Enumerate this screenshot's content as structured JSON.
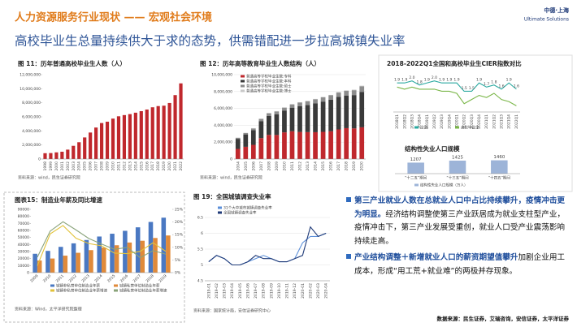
{
  "header": {
    "title": "人力资源服务行业现状 —— 宏观社会环境",
    "subtitle": "高校毕业生总量持续供大于求的态势，供需错配进一步拉高城镇失业率",
    "logo": "中德·上海",
    "logo_en": "Ultimate Solutions"
  },
  "bullets": [
    {
      "lead": "第三产业就业人数在总就业人口中占比持续攀升，疫情冲击更为明显。",
      "text": "经济结构调整使第三产业跃居成为就业支柱型产业，疫情冲击下，第三产业发展受重创，就业人口受产业震荡影响持续走高。"
    },
    {
      "lead": "产业结构调整＋新增就业人口的薪资期望值攀升",
      "text": "加剧企业用工成本，形成“用工荒+就业难”的两极并存现象。"
    }
  ],
  "footer": "数据来源：民生证券，艾瑞咨询，安信证券，太平洋证券",
  "chart_data": [
    {
      "type": "bar",
      "title": "图 11：历年普通高校毕业生人数（人）",
      "source": "资料来源：wind，民生证券研究院",
      "categories": [
        "1998",
        "1999",
        "2000",
        "2001",
        "2002",
        "2003",
        "2004",
        "2005",
        "2006",
        "2007",
        "2008",
        "2009",
        "2010",
        "2011",
        "2012",
        "2013",
        "2014",
        "2015",
        "2016",
        "2017",
        "2018",
        "2019",
        "2020",
        "2021",
        "2022"
      ],
      "values": [
        830000,
        850000,
        950000,
        1040000,
        1340000,
        1880000,
        2390000,
        3070000,
        3770000,
        4480000,
        5120000,
        5310000,
        5750000,
        6080000,
        6250000,
        6390000,
        6590000,
        6810000,
        7040000,
        7360000,
        7530000,
        7590000,
        7970000,
        9090000,
        10760000
      ],
      "color": "#c0282d",
      "ylim": [
        0,
        12000000
      ],
      "yticks": [
        0,
        {
          "value": 2000000,
          "label": "2,000,000"
        },
        {
          "value": 4000000,
          "label": "4,000,000"
        },
        {
          "value": 6000000,
          "label": "6,000,000"
        },
        {
          "value": 8000000,
          "label": "8,000,000"
        },
        {
          "value": 10000000,
          "label": "10,000,000"
        },
        {
          "value": 12000000,
          "label": "12,000,000"
        }
      ],
      "grid": false
    },
    {
      "type": "stacked_bar",
      "title": "图 12：历年高等教育毕业生人数结构（人）",
      "source": "资料来源：wind，民生证券研究院",
      "categories": [
        "2004",
        "2005",
        "2006",
        "2007",
        "2008",
        "2009",
        "2010",
        "2011",
        "2012",
        "2013",
        "2014",
        "2015",
        "2016",
        "2017",
        "2018",
        "2019",
        "2020"
      ],
      "series": [
        {
          "name": "普通高等学校毕业生数:专科",
          "color": "#c0282d",
          "values": [
            1200000,
            1450000,
            1680000,
            2480000,
            2860000,
            2850000,
            3160000,
            3290000,
            3210000,
            3190000,
            3180000,
            3220000,
            3290000,
            3510000,
            3660000,
            3630000,
            3760000
          ]
        },
        {
          "name": "普通高等学校毕业生数:本科",
          "color": "#3a3a3a",
          "values": [
            1190000,
            1470000,
            1730000,
            1990000,
            2260000,
            2460000,
            2590000,
            2800000,
            3040000,
            3200000,
            3410000,
            3590000,
            3750000,
            3850000,
            3870000,
            3950000,
            4200000
          ]
        },
        {
          "name": "普通高等学校毕业生数:硕士",
          "color": "#8c8c8c",
          "values": [
            127000,
            162000,
            216000,
            280000,
            300000,
            322000,
            334000,
            380000,
            434000,
            460000,
            482000,
            497000,
            508000,
            520000,
            544000,
            577000,
            663000
          ]
        },
        {
          "name": "普通高等学校毕业生数:博士",
          "color": "#c8c8c8",
          "values": [
            23000,
            27000,
            36000,
            41000,
            44000,
            49000,
            49000,
            50000,
            52000,
            53000,
            54000,
            54000,
            55000,
            58000,
            61000,
            63000,
            66000
          ]
        }
      ],
      "ylim": [
        0,
        10000000
      ],
      "yticks": [
        0,
        {
          "value": 2000000,
          "label": "2,000,000"
        },
        {
          "value": 4000000,
          "label": "4,000,000"
        },
        {
          "value": 6000000,
          "label": "6,000,000"
        },
        {
          "value": 8000000,
          "label": "8,000,000"
        },
        {
          "value": 10000000,
          "label": "10,000,000"
        }
      ],
      "grid": true
    },
    {
      "type": "line",
      "title": "2018-2022Q1全国和高校毕业生CIER指数对比",
      "categories": [
        "2018Q1",
        "2018Q2",
        "2018Q3",
        "2018Q4",
        "2019Q1",
        "2019Q2",
        "2019Q3",
        "2019Q4",
        "2020Q1",
        "2020Q2",
        "2020Q3",
        "2020Q4",
        "2021Q1",
        "2021Q2",
        "2021Q3",
        "2021Q4",
        "2022Q1"
      ],
      "series": [
        {
          "name": "全国",
          "color": "#2aa9a0",
          "values": [
            1.9,
            1.9,
            2.0,
            1.8,
            1.9,
            2.0,
            1.9,
            1.9,
            1.9,
            1.5,
            1.5,
            1.9,
            1.7,
            1.8,
            1.6,
            1.9,
            1.6
          ],
          "value_labels": [
            "1.9",
            "1.9",
            "2.0",
            "1.8",
            "1.9",
            "2.0",
            "1.9",
            "1.9",
            "1.9",
            "1.5",
            "1.5",
            "1.9",
            "1.7",
            "1.8",
            "1.6",
            "1.9",
            "1.6"
          ]
        },
        {
          "name": "高校毕业生",
          "color": "#7ab648",
          "values": [
            1.7,
            1.6,
            1.7,
            1.6,
            1.6,
            1.6,
            1.5,
            1.5,
            1.4,
            0.9,
            1.1,
            1.3,
            1.2,
            1.4,
            1.1,
            1.0,
            0.8
          ]
        }
      ],
      "ylim": [
        0.5,
        2.3
      ]
    },
    {
      "type": "bar",
      "title": "结构性失业人口规模",
      "categories": [
        "“十二五”期间",
        "“十三五”期间",
        "“十四五”期间"
      ],
      "series": [
        {
          "name": "结构性失业人口规模（万人）",
          "color": "#9db4d8",
          "values": [
            1207,
            1425,
            1460
          ]
        }
      ],
      "ylim": [
        0,
        1600
      ],
      "show_values": true
    },
    {
      "type": "bar_line",
      "title": "图表15：制造业年薪及同比增速",
      "source": "资料来源：Wind，太平洋研究院整理",
      "categories": [
        "2009",
        "2010",
        "2011",
        "2012",
        "2013",
        "2014",
        "2015",
        "2016",
        "2017",
        "2018",
        "2019"
      ],
      "series": [
        {
          "name": "城镇非私营单位制造业年薪",
          "color": "#4a78c2",
          "values": [
            26810,
            30916,
            36665,
            41650,
            46431,
            51369,
            55324,
            59470,
            64452,
            72088,
            78147
          ]
        },
        {
          "name": "城镇私营单位制造业年薪",
          "color": "#e08a3a",
          "values": [
            17260,
            20090,
            24138,
            28215,
            32035,
            35653,
            38948,
            42833,
            45345,
            49275,
            52858
          ]
        },
        {
          "name": "城镇非私营单位制造业年薪增速",
          "color": "#e2c23a",
          "axis": "y2",
          "values": [
            2.7,
            15.3,
            18.6,
            13.6,
            11.5,
            10.6,
            7.7,
            7.5,
            8.4,
            11.8,
            8.4
          ]
        },
        {
          "name": "城镇私营单位制造业年薪增速",
          "color": "#8aa37a",
          "axis": "y2",
          "values": [
            6.1,
            16.4,
            20.1,
            16.9,
            13.5,
            11.3,
            9.2,
            10.0,
            5.9,
            8.7,
            7.3
          ]
        }
      ],
      "ylim": [
        0,
        90000
      ],
      "yticks": [
        0,
        10000,
        20000,
        30000,
        40000,
        50000,
        60000,
        70000,
        80000,
        90000
      ],
      "y2lim": [
        0,
        25
      ],
      "y2ticks": [
        {
          "value": 0,
          "label": "0%"
        },
        {
          "value": 5,
          "label": "5%"
        },
        {
          "value": 10,
          "label": "10%"
        },
        {
          "value": 15,
          "label": "15%"
        },
        {
          "value": 20,
          "label": "20%"
        },
        {
          "value": 25,
          "label": "25%"
        }
      ],
      "grid": false
    },
    {
      "type": "line",
      "title": "图 19：全国城镇调查失业率",
      "source": "资料来源：国家统计局，安信证券研究中心",
      "categories": [
        "2019-01",
        "2019-02",
        "2019-03",
        "2019-04",
        "2019-05",
        "2019-06",
        "2019-07",
        "2019-08",
        "2019-09",
        "2019-10",
        "2019-11",
        "2019-12",
        "2020-01",
        "2020-02",
        "2020-03",
        "2020-04"
      ],
      "series": [
        {
          "name": "31个大中城市城镇调查失业率",
          "color": "#5b8fd9",
          "values": [
            5.1,
            5.3,
            5.2,
            5.0,
            5.0,
            5.1,
            5.2,
            5.3,
            5.2,
            5.1,
            5.1,
            5.2,
            5.7,
            5.9,
            5.9,
            6.0
          ]
        },
        {
          "name": "全国城镇调查失业率",
          "color": "#1f3a78",
          "values": [
            5.1,
            5.3,
            5.2,
            5.0,
            5.0,
            5.1,
            5.3,
            5.2,
            5.2,
            5.1,
            5.1,
            5.2,
            5.3,
            6.2,
            5.9,
            6.0
          ]
        }
      ],
      "ylim": [
        4.5,
        6.5
      ],
      "yticks": [
        4.5,
        5,
        5.5,
        6,
        6.5
      ],
      "grid": true
    }
  ]
}
